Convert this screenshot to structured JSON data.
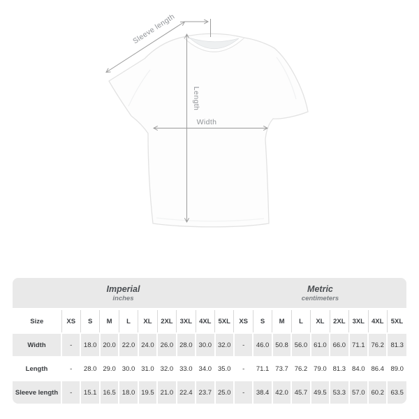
{
  "diagram": {
    "labels": {
      "sleeve": "Sleeve length",
      "length": "Length",
      "width": "Width"
    },
    "colors": {
      "arrow": "#9b9b9b",
      "label_text": "#8f9296",
      "shirt_outline": "#e2e2e2"
    }
  },
  "table": {
    "groups": [
      {
        "title": "Imperial",
        "subtitle": "inches"
      },
      {
        "title": "Metric",
        "subtitle": "centimeters"
      }
    ],
    "size_header": "Size",
    "sizes": [
      "XS",
      "S",
      "M",
      "L",
      "XL",
      "2XL",
      "3XL",
      "4XL",
      "5XL"
    ],
    "rows": [
      {
        "label": "Width",
        "imperial": [
          "-",
          "18.0",
          "20.0",
          "22.0",
          "24.0",
          "26.0",
          "28.0",
          "30.0",
          "32.0"
        ],
        "metric": [
          "-",
          "46.0",
          "50.8",
          "56.0",
          "61.0",
          "66.0",
          "71.1",
          "76.2",
          "81.3"
        ]
      },
      {
        "label": "Length",
        "imperial": [
          "-",
          "28.0",
          "29.0",
          "30.0",
          "31.0",
          "32.0",
          "33.0",
          "34.0",
          "35.0"
        ],
        "metric": [
          "-",
          "71.1",
          "73.7",
          "76.2",
          "79.0",
          "81.3",
          "84.0",
          "86.4",
          "89.0"
        ]
      },
      {
        "label": "Sleeve length",
        "imperial": [
          "-",
          "15.1",
          "16.5",
          "18.0",
          "19.5",
          "21.0",
          "22.4",
          "23.7",
          "25.0"
        ],
        "metric": [
          "-",
          "38.4",
          "42.0",
          "45.7",
          "49.5",
          "53.3",
          "57.0",
          "60.2",
          "63.5"
        ]
      }
    ],
    "colors": {
      "group_header_bg": "#e9e9e9",
      "alt_row_bg": "#eaeaea",
      "header_divider": "#d8d8d8",
      "text": "#333333"
    }
  }
}
